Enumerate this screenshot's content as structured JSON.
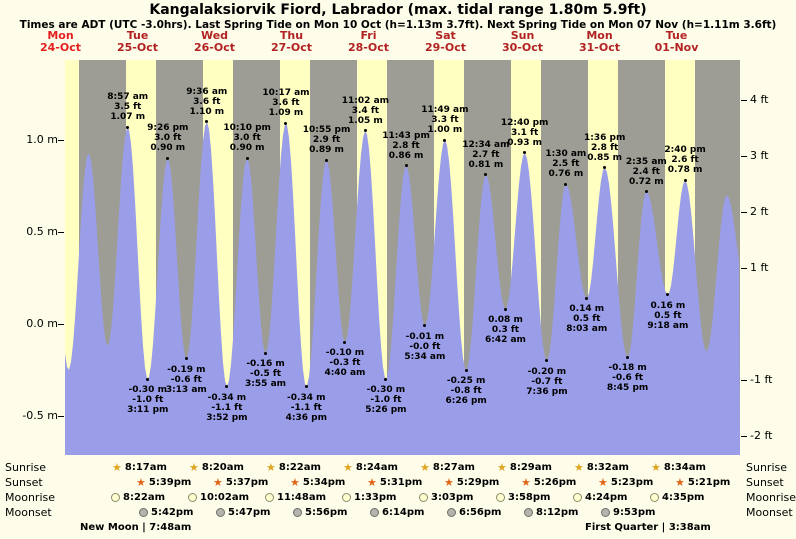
{
  "title": "Kangalaksiorvik Fiord, Labrador (max. tidal range 1.80m 5.9ft)",
  "subtitle": "Times are ADT (UTC -3.0hrs). Last Spring Tide on Mon 10 Oct (h=1.13m 3.7ft). Next Spring Tide on Mon 07 Nov (h=1.11m 3.6ft)",
  "days": [
    {
      "name": "Mon",
      "date": "24-Oct"
    },
    {
      "name": "Tue",
      "date": "25-Oct"
    },
    {
      "name": "Wed",
      "date": "26-Oct"
    },
    {
      "name": "Thu",
      "date": "27-Oct"
    },
    {
      "name": "Fri",
      "date": "28-Oct"
    },
    {
      "name": "Sat",
      "date": "29-Oct"
    },
    {
      "name": "Sun",
      "date": "30-Oct"
    },
    {
      "name": "Mon",
      "date": "31-Oct"
    },
    {
      "name": "Tue",
      "date": "01-Nov"
    }
  ],
  "y_axis_m": [
    "1.0 m",
    "0.5 m",
    "0.0 m",
    "-0.5 m"
  ],
  "y_axis_ft": [
    "4 ft",
    "3 ft",
    "2 ft",
    "1 ft",
    "-1 ft",
    "-2 ft"
  ],
  "chart_data": {
    "type": "area",
    "title": "Tide height curve",
    "x_unit": "days since Tue 25-Oct 00:00",
    "ylim_m": [
      -0.71,
      1.43
    ],
    "colors": {
      "water": "#9a9ee8",
      "daylight": "#ffffc2",
      "night": "#9d9d95"
    },
    "extremes": [
      {
        "d": -0.66,
        "h": 1.0,
        "type": "high"
      },
      {
        "d": -0.396,
        "h": -0.25,
        "type": "low"
      },
      {
        "d": -0.135,
        "h": 0.93,
        "type": "high"
      },
      {
        "d": 0.111,
        "h": -0.12,
        "type": "low"
      },
      {
        "d": 0.373,
        "h": 1.07,
        "type": "high",
        "label": [
          "8:57 am",
          "3.5 ft",
          "1.07 m"
        ]
      },
      {
        "d": 0.633,
        "h": -0.3,
        "type": "low",
        "label": [
          "-0.30 m",
          "-1.0 ft",
          "3:11 pm"
        ]
      },
      {
        "d": 0.893,
        "h": 0.9,
        "type": "high",
        "label": [
          "9:26 pm",
          "3.0 ft",
          "0.90 m"
        ]
      },
      {
        "d": 1.134,
        "h": -0.19,
        "type": "low",
        "label": [
          "-0.19 m",
          "-0.6 ft",
          "3:13 am"
        ]
      },
      {
        "d": 1.4,
        "h": 1.1,
        "type": "high",
        "label": [
          "9:36 am",
          "3.6 ft",
          "1.10 m"
        ]
      },
      {
        "d": 1.661,
        "h": -0.34,
        "type": "low",
        "label": [
          "-0.34 m",
          "-1.1 ft",
          "3:52 pm"
        ]
      },
      {
        "d": 1.924,
        "h": 0.9,
        "type": "high",
        "label": [
          "10:10 pm",
          "3.0 ft",
          "0.90 m"
        ]
      },
      {
        "d": 2.163,
        "h": -0.16,
        "type": "low",
        "label": [
          "-0.16 m",
          "-0.5 ft",
          "3:55 am"
        ]
      },
      {
        "d": 2.428,
        "h": 1.09,
        "type": "high",
        "label": [
          "10:17 am",
          "3.6 ft",
          "1.09 m"
        ]
      },
      {
        "d": 2.692,
        "h": -0.34,
        "type": "low",
        "label": [
          "-0.34 m",
          "-1.1 ft",
          "4:36 pm"
        ]
      },
      {
        "d": 2.955,
        "h": 0.89,
        "type": "high",
        "label": [
          "10:55 pm",
          "2.9 ft",
          "0.89 m"
        ]
      },
      {
        "d": 3.194,
        "h": -0.1,
        "type": "low",
        "label": [
          "-0.10 m",
          "-0.3 ft",
          "4:40 am"
        ]
      },
      {
        "d": 3.46,
        "h": 1.05,
        "type": "high",
        "label": [
          "11:02 am",
          "3.4 ft",
          "1.05 m"
        ]
      },
      {
        "d": 3.726,
        "h": -0.3,
        "type": "low",
        "label": [
          "-0.30 m",
          "-1.0 ft",
          "5:26 pm"
        ]
      },
      {
        "d": 3.988,
        "h": 0.86,
        "type": "high",
        "label": [
          "11:43 pm",
          "2.8 ft",
          "0.86 m"
        ]
      },
      {
        "d": 4.232,
        "h": -0.01,
        "type": "low",
        "label": [
          "-0.01 m",
          "-0.0 ft",
          "5:34 am"
        ]
      },
      {
        "d": 4.492,
        "h": 1.0,
        "type": "high",
        "label": [
          "11:49 am",
          "3.3 ft",
          "1.00 m"
        ]
      },
      {
        "d": 4.768,
        "h": -0.25,
        "type": "low",
        "label": [
          "-0.25 m",
          "-0.8 ft",
          "6:26 pm"
        ]
      },
      {
        "d": 5.024,
        "h": 0.81,
        "type": "high",
        "label": [
          "12:34 am",
          "2.7 ft",
          "0.81 m"
        ]
      },
      {
        "d": 5.279,
        "h": 0.08,
        "type": "low",
        "label": [
          "0.08 m",
          "0.3 ft",
          "6:42 am"
        ]
      },
      {
        "d": 5.528,
        "h": 0.93,
        "type": "high",
        "label": [
          "12:40 pm",
          "3.1 ft",
          "0.93 m"
        ]
      },
      {
        "d": 5.817,
        "h": -0.2,
        "type": "low",
        "label": [
          "-0.20 m",
          "-0.7 ft",
          "7:36 pm"
        ]
      },
      {
        "d": 6.063,
        "h": 0.76,
        "type": "high",
        "label": [
          "1:30 am",
          "2.5 ft",
          "0.76 m"
        ]
      },
      {
        "d": 6.335,
        "h": 0.14,
        "type": "low",
        "label": [
          "0.14 m",
          "0.5 ft",
          "8:03 am"
        ]
      },
      {
        "d": 6.567,
        "h": 0.85,
        "type": "high",
        "label": [
          "1:36 pm",
          "2.8 ft",
          "0.85 m"
        ]
      },
      {
        "d": 6.865,
        "h": -0.18,
        "type": "low",
        "label": [
          "-0.18 m",
          "-0.6 ft",
          "8:45 pm"
        ]
      },
      {
        "d": 7.108,
        "h": 0.72,
        "type": "high",
        "label": [
          "2:35 am",
          "2.4 ft",
          "0.72 m"
        ]
      },
      {
        "d": 7.388,
        "h": 0.16,
        "type": "low",
        "label": [
          "0.16 m",
          "0.5 ft",
          "9:18 am"
        ]
      },
      {
        "d": 7.611,
        "h": 0.78,
        "type": "high",
        "label": [
          "2:40 pm",
          "2.6 ft",
          "0.78 m"
        ]
      },
      {
        "d": 7.889,
        "h": -0.15,
        "type": "low"
      },
      {
        "d": 8.153,
        "h": 0.7,
        "type": "high"
      },
      {
        "d": 8.417,
        "h": 0.15,
        "type": "low"
      }
    ]
  },
  "astro": {
    "sunrise": {
      "label": "Sunrise",
      "times": [
        "8:17am",
        "8:20am",
        "8:22am",
        "8:24am",
        "8:27am",
        "8:29am",
        "8:32am",
        "8:34am"
      ]
    },
    "sunset": {
      "label": "Sunset",
      "times": [
        "5:39pm",
        "5:37pm",
        "5:34pm",
        "5:31pm",
        "5:29pm",
        "5:26pm",
        "5:23pm",
        "5:21pm"
      ]
    },
    "moonrise": {
      "label": "Moonrise",
      "times": [
        "8:22am",
        "10:02am",
        "11:48am",
        "1:33pm",
        "3:03pm",
        "3:58pm",
        "4:24pm",
        "4:35pm"
      ]
    },
    "moonset": {
      "label": "Moonset",
      "times": [
        "5:42pm",
        "5:47pm",
        "5:56pm",
        "6:14pm",
        "6:56pm",
        "8:12pm",
        "9:53pm"
      ]
    },
    "phases": [
      {
        "text": "New Moon | 7:48am"
      },
      {
        "text": "First Quarter | 3:38am"
      }
    ]
  }
}
